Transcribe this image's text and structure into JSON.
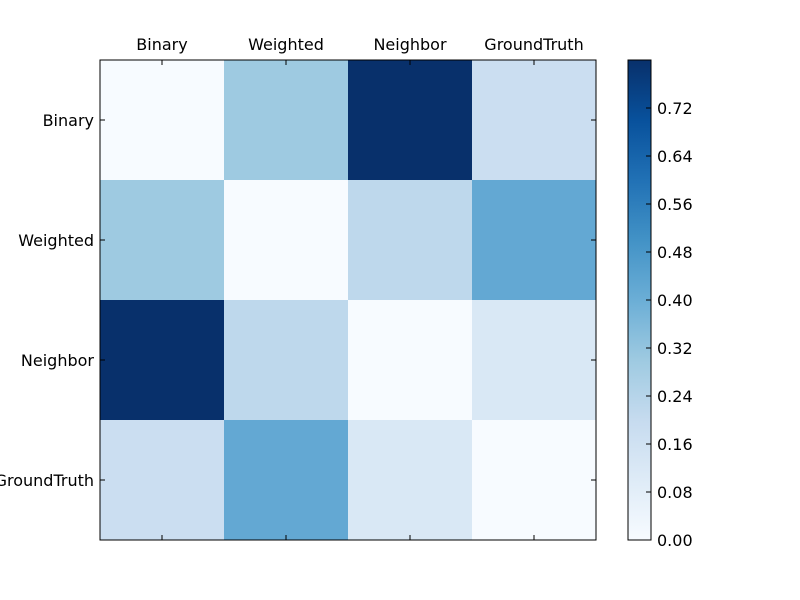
{
  "chart_data": {
    "type": "heatmap",
    "rows": [
      "Binary",
      "Weighted",
      "Neighbor",
      "GroundTruth"
    ],
    "columns": [
      "Binary",
      "Weighted",
      "Neighbor",
      "GroundTruth"
    ],
    "values": [
      [
        0.0,
        0.3,
        0.8,
        0.18
      ],
      [
        0.3,
        0.0,
        0.22,
        0.42
      ],
      [
        0.8,
        0.22,
        0.0,
        0.12
      ],
      [
        0.18,
        0.42,
        0.12,
        0.0
      ]
    ],
    "colormap": "Blues",
    "vmin": 0.0,
    "vmax": 0.8,
    "colorbar": {
      "ticks": [
        0.0,
        0.08,
        0.16,
        0.24,
        0.32,
        0.4,
        0.48,
        0.56,
        0.64,
        0.72
      ],
      "tick_labels": [
        "0.00",
        "0.08",
        "0.16",
        "0.24",
        "0.32",
        "0.40",
        "0.48",
        "0.56",
        "0.64",
        "0.72"
      ]
    },
    "x_tick_position": "top",
    "title": "",
    "xlabel": "",
    "ylabel": "",
    "grid": false
  }
}
